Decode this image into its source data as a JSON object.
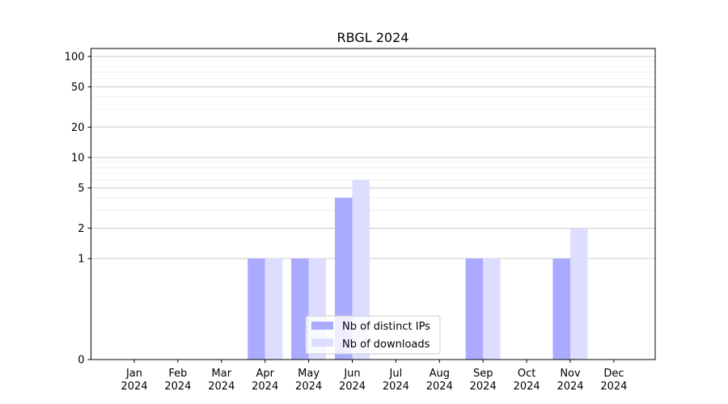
{
  "chart_data": {
    "type": "bar",
    "title": "RBGL 2024",
    "xlabel": "",
    "ylabel": "",
    "y_scale": "symlog",
    "ylim": [
      0,
      120
    ],
    "y_ticks": [
      0,
      1,
      2,
      5,
      10,
      20,
      50,
      100
    ],
    "grid": true,
    "legend_placement": "bottom-center",
    "categories": [
      {
        "month": "Jan",
        "year": "2024"
      },
      {
        "month": "Feb",
        "year": "2024"
      },
      {
        "month": "Mar",
        "year": "2024"
      },
      {
        "month": "Apr",
        "year": "2024"
      },
      {
        "month": "May",
        "year": "2024"
      },
      {
        "month": "Jun",
        "year": "2024"
      },
      {
        "month": "Jul",
        "year": "2024"
      },
      {
        "month": "Aug",
        "year": "2024"
      },
      {
        "month": "Sep",
        "year": "2024"
      },
      {
        "month": "Oct",
        "year": "2024"
      },
      {
        "month": "Nov",
        "year": "2024"
      },
      {
        "month": "Dec",
        "year": "2024"
      }
    ],
    "series": [
      {
        "name": "Nb of distinct IPs",
        "color": "#aaaaff",
        "values": [
          0,
          0,
          0,
          1,
          1,
          4,
          0,
          0,
          1,
          0,
          1,
          0
        ]
      },
      {
        "name": "Nb of downloads",
        "color": "#ddddff",
        "values": [
          0,
          0,
          0,
          1,
          1,
          6,
          0,
          0,
          1,
          0,
          2,
          0
        ]
      }
    ]
  }
}
